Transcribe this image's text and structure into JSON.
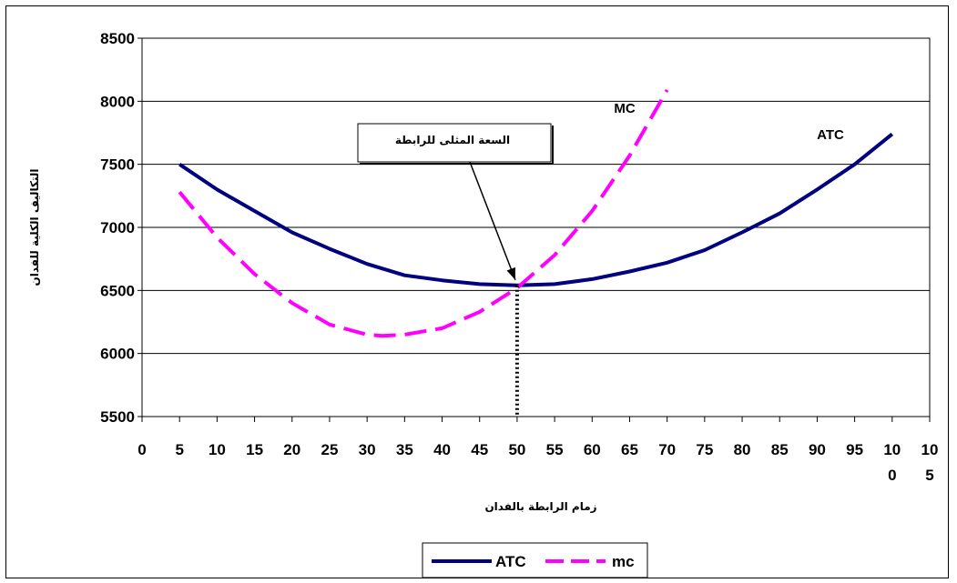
{
  "chart_data": {
    "type": "line",
    "xlabel": "زمام الرابطة بالفدان",
    "ylabel": "التكاليف الكلية للفدان",
    "ylim": [
      5500,
      8500
    ],
    "yticks": [
      5500,
      6000,
      6500,
      7000,
      7500,
      8000,
      8500
    ],
    "xlim": [
      0,
      105
    ],
    "xticks": [
      {
        "value": 0,
        "lines": [
          "0"
        ]
      },
      {
        "value": 5,
        "lines": [
          "5"
        ]
      },
      {
        "value": 10,
        "lines": [
          "10"
        ]
      },
      {
        "value": 15,
        "lines": [
          "15"
        ]
      },
      {
        "value": 20,
        "lines": [
          "20"
        ]
      },
      {
        "value": 25,
        "lines": [
          "25"
        ]
      },
      {
        "value": 30,
        "lines": [
          "30"
        ]
      },
      {
        "value": 35,
        "lines": [
          "35"
        ]
      },
      {
        "value": 40,
        "lines": [
          "40"
        ]
      },
      {
        "value": 45,
        "lines": [
          "45"
        ]
      },
      {
        "value": 50,
        "lines": [
          "50"
        ]
      },
      {
        "value": 55,
        "lines": [
          "55"
        ]
      },
      {
        "value": 60,
        "lines": [
          "60"
        ]
      },
      {
        "value": 65,
        "lines": [
          "65"
        ]
      },
      {
        "value": 70,
        "lines": [
          "70"
        ]
      },
      {
        "value": 75,
        "lines": [
          "75"
        ]
      },
      {
        "value": 80,
        "lines": [
          "80"
        ]
      },
      {
        "value": 85,
        "lines": [
          "85"
        ]
      },
      {
        "value": 90,
        "lines": [
          "90"
        ]
      },
      {
        "value": 95,
        "lines": [
          "95"
        ]
      },
      {
        "value": 100,
        "lines": [
          "10",
          "0"
        ]
      },
      {
        "value": 105,
        "lines": [
          "10",
          "5"
        ]
      }
    ],
    "grid": "horizontal",
    "legend_position": "bottom",
    "series": [
      {
        "name": "ATC",
        "label": "ATC",
        "color": "#000080",
        "dash": "solid",
        "points": [
          [
            5,
            7500
          ],
          [
            10,
            7300
          ],
          [
            15,
            7130
          ],
          [
            20,
            6960
          ],
          [
            25,
            6830
          ],
          [
            30,
            6710
          ],
          [
            35,
            6620
          ],
          [
            40,
            6580
          ],
          [
            45,
            6550
          ],
          [
            50,
            6540
          ],
          [
            55,
            6550
          ],
          [
            60,
            6590
          ],
          [
            65,
            6650
          ],
          [
            70,
            6720
          ],
          [
            75,
            6820
          ],
          [
            80,
            6960
          ],
          [
            85,
            7110
          ],
          [
            90,
            7300
          ],
          [
            95,
            7500
          ],
          [
            100,
            7740
          ]
        ]
      },
      {
        "name": "mc",
        "label": "MC",
        "color": "#ff00ff",
        "dash": "long-dash",
        "points": [
          [
            5,
            7280
          ],
          [
            10,
            6920
          ],
          [
            15,
            6630
          ],
          [
            20,
            6400
          ],
          [
            25,
            6230
          ],
          [
            30,
            6150
          ],
          [
            32,
            6140
          ],
          [
            35,
            6150
          ],
          [
            40,
            6200
          ],
          [
            45,
            6330
          ],
          [
            50,
            6520
          ],
          [
            55,
            6780
          ],
          [
            60,
            7130
          ],
          [
            65,
            7570
          ],
          [
            70,
            8090
          ]
        ]
      }
    ],
    "annotation": {
      "text": "السعة المثلى للرابطة",
      "arrow_to": [
        50,
        6540
      ],
      "dropline_x": 50
    }
  }
}
